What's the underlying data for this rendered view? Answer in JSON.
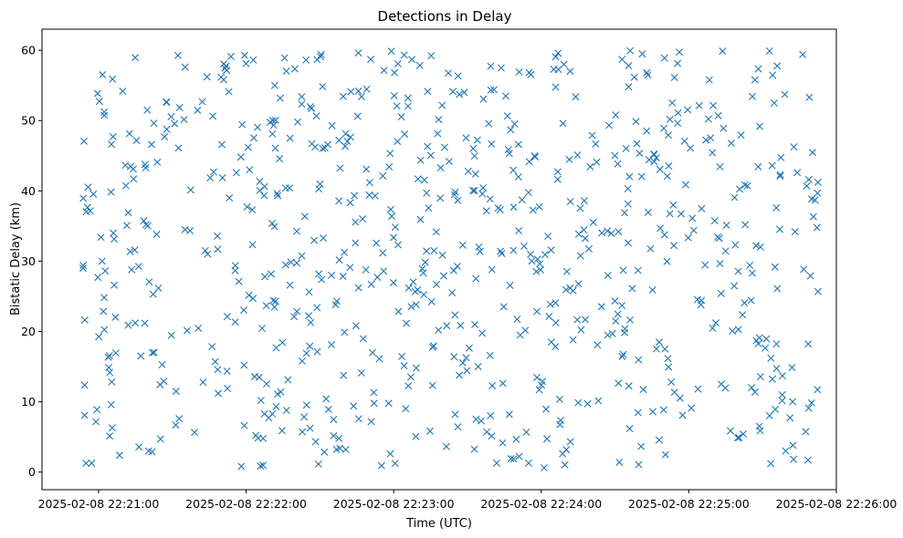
{
  "chart_data": {
    "type": "scatter",
    "title": "Detections in Delay",
    "xlabel": "Time (UTC)",
    "ylabel": "Bistatic Delay (km)",
    "x_type": "datetime",
    "xlim": [
      "2025-02-08 22:20:37",
      "2025-02-08 22:26:00"
    ],
    "ylim": [
      -2.5,
      63
    ],
    "x_ticks": [
      "2025-02-08 22:21:00",
      "2025-02-08 22:22:00",
      "2025-02-08 22:23:00",
      "2025-02-08 22:24:00",
      "2025-02-08 22:25:00",
      "2025-02-08 22:26:00"
    ],
    "y_ticks": [
      0,
      10,
      20,
      30,
      40,
      50,
      60
    ],
    "grid": false,
    "legend": false,
    "marker": "x",
    "color": "#1f77b4",
    "seed": 20250208,
    "n_points": 780,
    "x_range": [
      "2025-02-08 22:20:52",
      "2025-02-08 22:25:53"
    ],
    "y_range": [
      0.5,
      60
    ]
  }
}
